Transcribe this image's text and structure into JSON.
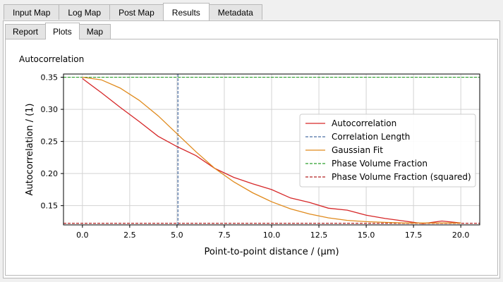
{
  "tabs": [
    {
      "label": "Input Map"
    },
    {
      "label": "Log Map"
    },
    {
      "label": "Post Map"
    },
    {
      "label": "Results"
    },
    {
      "label": "Metadata"
    }
  ],
  "subtabs": [
    {
      "label": "Report"
    },
    {
      "label": "Plots"
    },
    {
      "label": "Map"
    }
  ],
  "plot_title": "Autocorrelation",
  "chart_data": {
    "type": "line",
    "xlabel": "Point-to-point distance / (µm)",
    "ylabel": "Autocorrelation / (1)",
    "xlim": [
      -1,
      21
    ],
    "ylim": [
      0.12,
      0.355
    ],
    "xticks": [
      0.0,
      2.5,
      5.0,
      7.5,
      10.0,
      12.5,
      15.0,
      17.5,
      20.0
    ],
    "xtick_labels": [
      "0.0",
      "2.5",
      "5.0",
      "7.5",
      "10.0",
      "12.5",
      "15.0",
      "17.5",
      "20.0"
    ],
    "yticks": [
      0.15,
      0.2,
      0.25,
      0.3,
      0.35
    ],
    "ytick_labels": [
      "0.15",
      "0.20",
      "0.25",
      "0.30",
      "0.35"
    ],
    "grid": true,
    "legend_position": "right",
    "series": [
      {
        "name": "Autocorrelation",
        "color": "#d62728",
        "style": "solid",
        "x": [
          0,
          1,
          2,
          3,
          4,
          5,
          6,
          7,
          8,
          9,
          10,
          11,
          12,
          13,
          14,
          15,
          16,
          17,
          18,
          19,
          20
        ],
        "y": [
          0.348,
          0.326,
          0.303,
          0.281,
          0.258,
          0.242,
          0.228,
          0.208,
          0.194,
          0.184,
          0.175,
          0.162,
          0.155,
          0.146,
          0.143,
          0.135,
          0.13,
          0.126,
          0.122,
          0.126,
          0.123
        ]
      },
      {
        "name": "Correlation Length",
        "color": "#4a6fa5",
        "style": "dashed",
        "vertical": 5.05
      },
      {
        "name": "Gaussian Fit",
        "color": "#e08a1c",
        "style": "solid",
        "x": [
          0,
          1,
          2,
          3,
          4,
          5,
          6,
          7,
          8,
          9,
          10,
          11,
          12,
          13,
          14,
          15,
          16,
          17,
          18,
          19,
          20
        ],
        "y": [
          0.35,
          0.346,
          0.333,
          0.314,
          0.29,
          0.262,
          0.234,
          0.208,
          0.187,
          0.17,
          0.156,
          0.145,
          0.137,
          0.131,
          0.127,
          0.125,
          0.124,
          0.123,
          0.123,
          0.123,
          0.123
        ]
      },
      {
        "name": "Phase Volume Fraction",
        "color": "#2ca02c",
        "style": "dashed",
        "horizontal": 0.35
      },
      {
        "name": "Phase Volume Fraction (squared)",
        "color": "#b22222",
        "style": "dashed",
        "horizontal": 0.1225
      }
    ]
  }
}
